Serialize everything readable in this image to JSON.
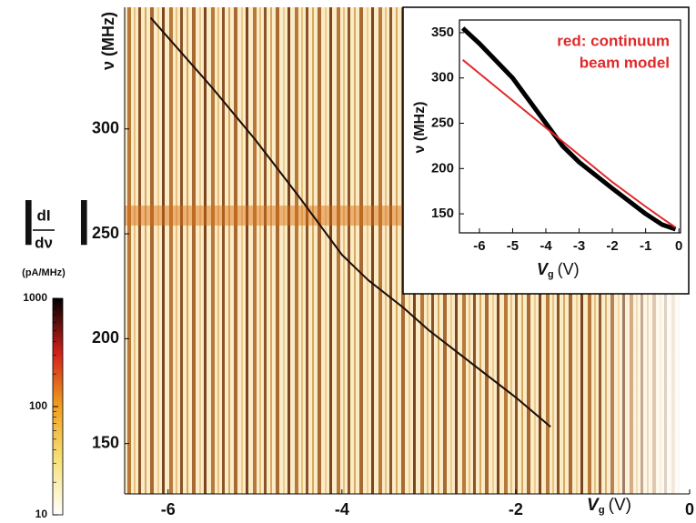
{
  "chart_data": [
    {
      "type": "heatmap",
      "x_label": {
        "main": "V",
        "sub": "g",
        "unit": "(V)"
      },
      "y_label": "ν (MHz)",
      "xlim": [
        -6.5,
        0
      ],
      "xticks": [
        -6,
        -4,
        -2,
        0
      ],
      "ylim": [
        126,
        358
      ],
      "yticks": [
        150,
        200,
        250,
        300
      ],
      "series": [
        {
          "color": "#1a0d08",
          "x": [
            -6.2,
            -5.5,
            -5,
            -4.5,
            -4,
            -3.7,
            -3.3,
            -3,
            -2.5,
            -2,
            -1.6
          ],
          "values": [
            353,
            320,
            295,
            268,
            240,
            228,
            215,
            204,
            188,
            172,
            158
          ]
        }
      ],
      "colorbar": {
        "label_top": "dI",
        "label_bottom": "dν",
        "unit": "(pA/MHz)",
        "scale": "log",
        "lim": [
          10,
          1000
        ],
        "ticks": [
          10,
          100,
          1000
        ],
        "colors": [
          "#ffffff",
          "#f7e27a",
          "#f0a020",
          "#d0201a",
          "#000000"
        ]
      }
    },
    {
      "type": "line",
      "x_label": {
        "main": "V",
        "sub": "g",
        "unit": "(V)"
      },
      "y_label": "ν (MHz)",
      "annotation": [
        "red: continuum",
        "beam model"
      ],
      "xlim": [
        -6.6,
        0.05
      ],
      "xticks": [
        -6,
        -5,
        -4,
        -3,
        -2,
        -1,
        0
      ],
      "ylim": [
        129,
        364
      ],
      "yticks": [
        150,
        200,
        250,
        300,
        350
      ],
      "series": [
        {
          "color": "#000000",
          "x": [
            -6.5,
            -6,
            -5,
            -4,
            -3.7,
            -3.5,
            -3,
            -2,
            -1,
            -0.5,
            -0.1
          ],
          "values": [
            355,
            338,
            300,
            250,
            235,
            225,
            207,
            178,
            150,
            138,
            133
          ]
        },
        {
          "color": "#e0282a",
          "x": [
            -6.5,
            -6,
            -5,
            -4,
            -3,
            -2,
            -1,
            -0.5,
            -0.1
          ],
          "values": [
            320,
            305,
            275,
            245,
            215,
            185,
            158,
            145,
            135
          ]
        }
      ]
    }
  ]
}
